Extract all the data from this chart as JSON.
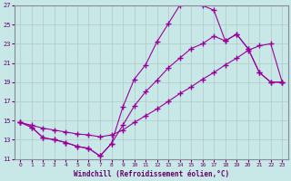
{
  "xlabel": "Windchill (Refroidissement éolien,°C)",
  "bg_color": "#c8e8e8",
  "line_color": "#990099",
  "xlim": [
    -0.5,
    23.5
  ],
  "ylim": [
    11,
    27
  ],
  "xtick_labels": [
    "0",
    "1",
    "2",
    "3",
    "4",
    "5",
    "6",
    "7",
    "8",
    "9",
    "10",
    "11",
    "12",
    "13",
    "14",
    "15",
    "16",
    "17",
    "18",
    "19",
    "20",
    "21",
    "22",
    "23"
  ],
  "xticks": [
    0,
    1,
    2,
    3,
    4,
    5,
    6,
    7,
    8,
    9,
    10,
    11,
    12,
    13,
    14,
    15,
    16,
    17,
    18,
    19,
    20,
    21,
    22,
    23
  ],
  "yticks": [
    11,
    13,
    15,
    17,
    19,
    21,
    23,
    25,
    27
  ],
  "grid_color": "#b0c8c8",
  "curve1_x": [
    0,
    1,
    2,
    3,
    4,
    5,
    6,
    7,
    8,
    9,
    10,
    11,
    12,
    13,
    14,
    15,
    16,
    17,
    18,
    19,
    20,
    21,
    22,
    23
  ],
  "curve1_y": [
    14.8,
    14.3,
    13.2,
    13.0,
    12.7,
    12.3,
    12.1,
    11.3,
    12.6,
    16.4,
    19.3,
    20.8,
    23.2,
    25.1,
    27.0,
    27.3,
    27.0,
    26.5,
    23.3,
    24.0,
    22.5,
    20.0,
    19.0,
    19.0
  ],
  "curve2_x": [
    0,
    1,
    2,
    3,
    4,
    5,
    6,
    7,
    8,
    9,
    10,
    11,
    12,
    13,
    14,
    15,
    16,
    17,
    18,
    19,
    20,
    21,
    22,
    23
  ],
  "curve2_y": [
    14.8,
    14.3,
    13.2,
    13.0,
    12.7,
    12.3,
    12.1,
    11.3,
    12.6,
    14.5,
    16.5,
    18.0,
    19.2,
    20.5,
    21.5,
    22.5,
    23.0,
    23.8,
    23.3,
    24.0,
    22.5,
    20.0,
    19.0,
    19.0
  ],
  "curve3_x": [
    0,
    1,
    2,
    3,
    4,
    5,
    6,
    7,
    8,
    9,
    10,
    11,
    12,
    13,
    14,
    15,
    16,
    17,
    18,
    19,
    20,
    21,
    22,
    23
  ],
  "curve3_y": [
    14.8,
    14.5,
    14.2,
    14.0,
    13.8,
    13.6,
    13.5,
    13.3,
    13.5,
    14.0,
    14.8,
    15.5,
    16.2,
    17.0,
    17.8,
    18.5,
    19.3,
    20.0,
    20.8,
    21.5,
    22.3,
    22.8,
    23.0,
    19.0
  ]
}
